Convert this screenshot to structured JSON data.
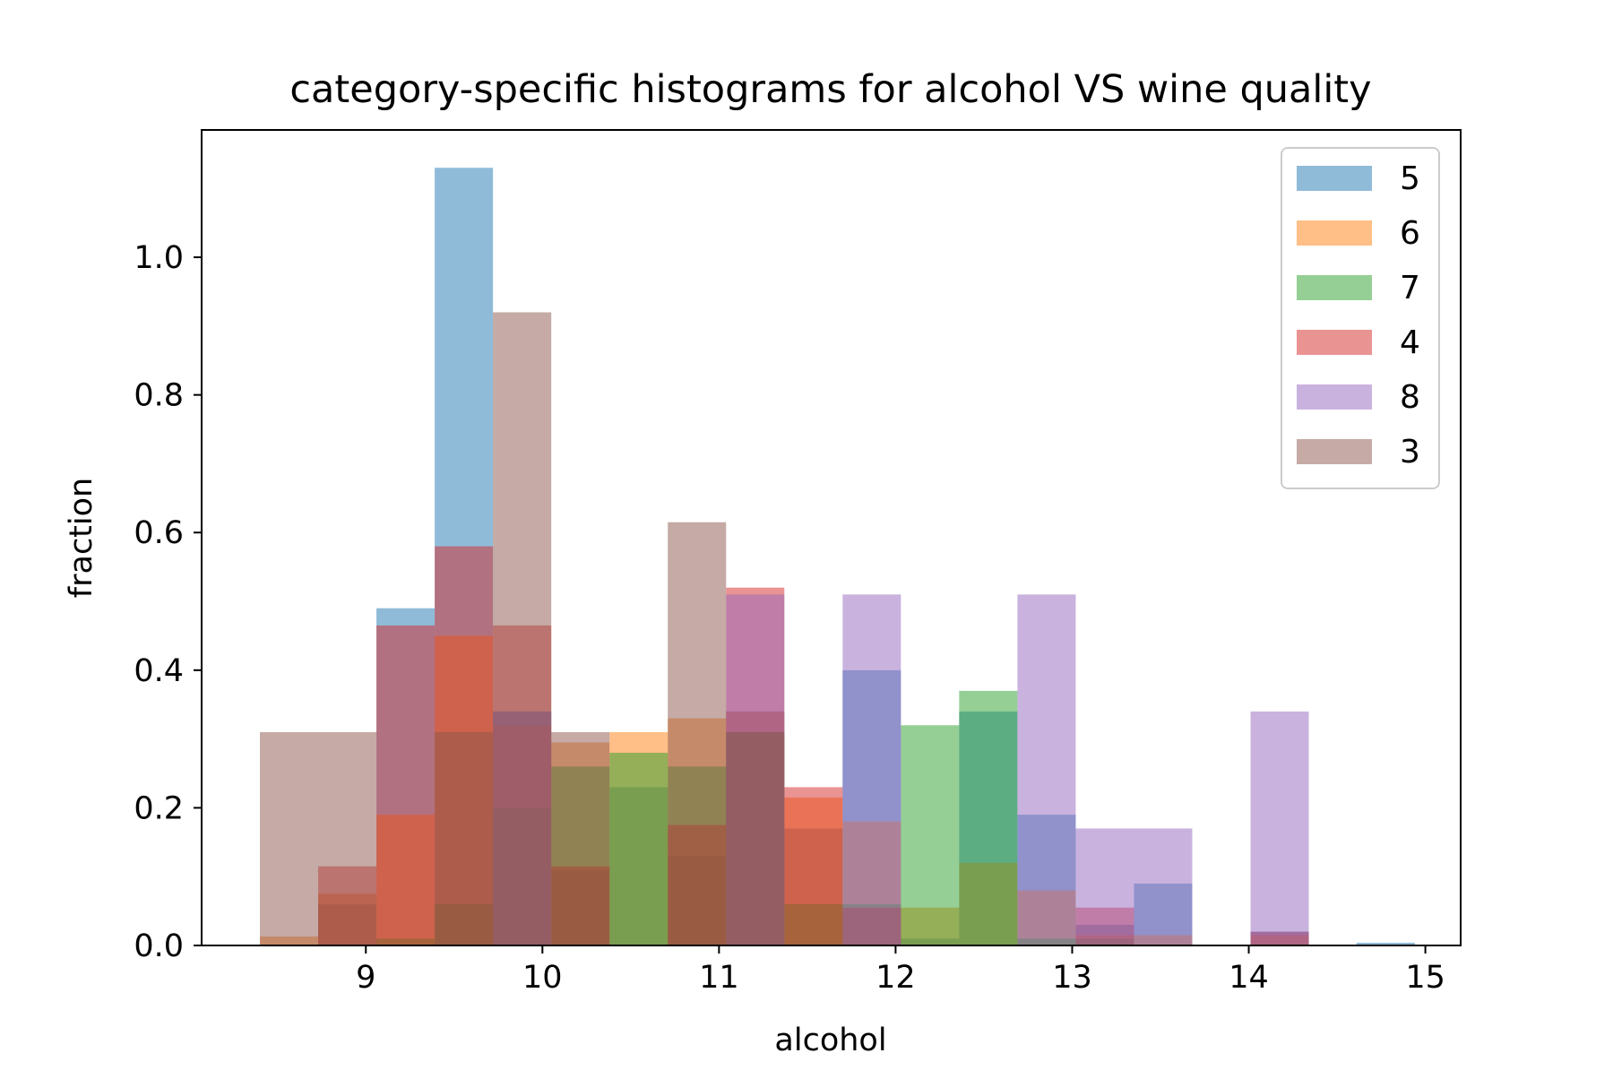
{
  "chart_data": {
    "type": "bar",
    "title": "category-specific histograms for alcohol VS wine quality",
    "xlabel": "alcohol",
    "ylabel": "fraction",
    "xlim": [
      8.07,
      15.2
    ],
    "ylim": [
      0,
      1.185
    ],
    "xticks": [
      9,
      10,
      11,
      12,
      13,
      14,
      15
    ],
    "yticks": [
      0.0,
      0.2,
      0.4,
      0.6,
      0.8,
      1.0
    ],
    "xtick_labels": [
      "9",
      "10",
      "11",
      "12",
      "13",
      "14",
      "15"
    ],
    "ytick_labels": [
      "0.0",
      "0.2",
      "0.4",
      "0.6",
      "0.8",
      "1.0"
    ],
    "grid": false,
    "legend_position": "upper right",
    "histtype": "overlaid translucent histograms",
    "alpha": 0.5,
    "series": [
      {
        "name": "5",
        "color": "#1f77b4",
        "bins": [
          {
            "x0": 8.73,
            "x1": 9.06,
            "y": 0.06
          },
          {
            "x0": 9.06,
            "x1": 9.39,
            "y": 0.49
          },
          {
            "x0": 9.39,
            "x1": 9.72,
            "y": 1.13
          },
          {
            "x0": 9.72,
            "x1": 10.05,
            "y": 0.34
          },
          {
            "x0": 10.05,
            "x1": 10.38,
            "y": 0.11
          },
          {
            "x0": 10.38,
            "x1": 10.71,
            "y": 0.23
          },
          {
            "x0": 10.71,
            "x1": 11.04,
            "y": 0.13
          },
          {
            "x0": 11.04,
            "x1": 11.37,
            "y": 0.34
          },
          {
            "x0": 11.37,
            "x1": 11.7,
            "y": 0.17
          },
          {
            "x0": 11.7,
            "x1": 12.03,
            "y": 0.4
          },
          {
            "x0": 12.03,
            "x1": 12.36,
            "y": 0.01
          },
          {
            "x0": 12.36,
            "x1": 12.69,
            "y": 0.34
          },
          {
            "x0": 12.69,
            "x1": 13.02,
            "y": 0.19
          },
          {
            "x0": 13.02,
            "x1": 13.35,
            "y": 0.03
          },
          {
            "x0": 13.35,
            "x1": 13.68,
            "y": 0.09
          },
          {
            "x0": 14.01,
            "x1": 14.34,
            "y": 0.02
          },
          {
            "x0": 14.61,
            "x1": 14.94,
            "y": 0.004
          }
        ]
      },
      {
        "name": "6",
        "color": "#ff7f0e",
        "bins": [
          {
            "x0": 8.4,
            "x1": 8.73,
            "y": 0.013
          },
          {
            "x0": 8.73,
            "x1": 9.06,
            "y": 0.075
          },
          {
            "x0": 9.06,
            "x1": 9.39,
            "y": 0.19
          },
          {
            "x0": 9.39,
            "x1": 9.72,
            "y": 0.45
          },
          {
            "x0": 9.72,
            "x1": 10.05,
            "y": 0.32
          },
          {
            "x0": 10.05,
            "x1": 10.38,
            "y": 0.295
          },
          {
            "x0": 10.38,
            "x1": 10.71,
            "y": 0.31
          },
          {
            "x0": 10.71,
            "x1": 11.04,
            "y": 0.33
          },
          {
            "x0": 11.04,
            "x1": 11.37,
            "y": 0.34
          },
          {
            "x0": 11.37,
            "x1": 11.7,
            "y": 0.215
          },
          {
            "x0": 11.7,
            "x1": 12.03,
            "y": 0.18
          },
          {
            "x0": 12.03,
            "x1": 12.36,
            "y": 0.055
          },
          {
            "x0": 12.36,
            "x1": 12.69,
            "y": 0.12
          },
          {
            "x0": 12.69,
            "x1": 13.02,
            "y": 0.08
          },
          {
            "x0": 13.02,
            "x1": 13.35,
            "y": 0.015
          },
          {
            "x0": 13.35,
            "x1": 13.68,
            "y": 0.015
          },
          {
            "x0": 14.01,
            "x1": 14.34,
            "y": 0.015
          }
        ]
      },
      {
        "name": "7",
        "color": "#2ca02c",
        "bins": [
          {
            "x0": 9.06,
            "x1": 9.39,
            "y": 0.01
          },
          {
            "x0": 9.39,
            "x1": 9.72,
            "y": 0.06
          },
          {
            "x0": 9.72,
            "x1": 10.05,
            "y": 0.2
          },
          {
            "x0": 10.05,
            "x1": 10.38,
            "y": 0.26
          },
          {
            "x0": 10.38,
            "x1": 10.71,
            "y": 0.28
          },
          {
            "x0": 10.71,
            "x1": 11.04,
            "y": 0.26
          },
          {
            "x0": 11.04,
            "x1": 11.37,
            "y": 0.31
          },
          {
            "x0": 11.37,
            "x1": 11.7,
            "y": 0.06
          },
          {
            "x0": 11.7,
            "x1": 12.03,
            "y": 0.06
          },
          {
            "x0": 12.03,
            "x1": 12.36,
            "y": 0.32
          },
          {
            "x0": 12.36,
            "x1": 12.69,
            "y": 0.37
          },
          {
            "x0": 12.69,
            "x1": 13.02,
            "y": 0.01
          },
          {
            "x0": 13.02,
            "x1": 13.35,
            "y": 0.01
          }
        ]
      },
      {
        "name": "4",
        "color": "#d62728",
        "bins": [
          {
            "x0": 8.73,
            "x1": 9.06,
            "y": 0.115
          },
          {
            "x0": 9.06,
            "x1": 9.39,
            "y": 0.465
          },
          {
            "x0": 9.39,
            "x1": 9.72,
            "y": 0.58
          },
          {
            "x0": 9.72,
            "x1": 10.05,
            "y": 0.465
          },
          {
            "x0": 10.05,
            "x1": 10.38,
            "y": 0.115
          },
          {
            "x0": 10.71,
            "x1": 11.04,
            "y": 0.175
          },
          {
            "x0": 11.04,
            "x1": 11.37,
            "y": 0.52
          },
          {
            "x0": 11.37,
            "x1": 11.7,
            "y": 0.23
          },
          {
            "x0": 11.7,
            "x1": 12.03,
            "y": 0.055
          },
          {
            "x0": 13.02,
            "x1": 13.35,
            "y": 0.055
          },
          {
            "x0": 14.01,
            "x1": 14.34,
            "y": 0.02
          }
        ]
      },
      {
        "name": "8",
        "color": "#9467bd",
        "bins": [
          {
            "x0": 9.72,
            "x1": 10.05,
            "y": 0.34
          },
          {
            "x0": 11.04,
            "x1": 11.37,
            "y": 0.51
          },
          {
            "x0": 11.7,
            "x1": 12.03,
            "y": 0.51
          },
          {
            "x0": 12.69,
            "x1": 13.02,
            "y": 0.51
          },
          {
            "x0": 13.02,
            "x1": 13.35,
            "y": 0.17
          },
          {
            "x0": 13.35,
            "x1": 13.68,
            "y": 0.17
          },
          {
            "x0": 14.01,
            "x1": 14.34,
            "y": 0.34
          }
        ]
      },
      {
        "name": "3",
        "color": "#8c564b",
        "bins": [
          {
            "x0": 8.4,
            "x1": 8.73,
            "y": 0.31
          },
          {
            "x0": 8.73,
            "x1": 9.06,
            "y": 0.31
          },
          {
            "x0": 9.39,
            "x1": 9.72,
            "y": 0.31
          },
          {
            "x0": 9.72,
            "x1": 10.05,
            "y": 0.92
          },
          {
            "x0": 10.05,
            "x1": 10.38,
            "y": 0.31
          },
          {
            "x0": 10.71,
            "x1": 11.04,
            "y": 0.615
          },
          {
            "x0": 11.04,
            "x1": 11.37,
            "y": 0.31
          }
        ]
      }
    ]
  }
}
